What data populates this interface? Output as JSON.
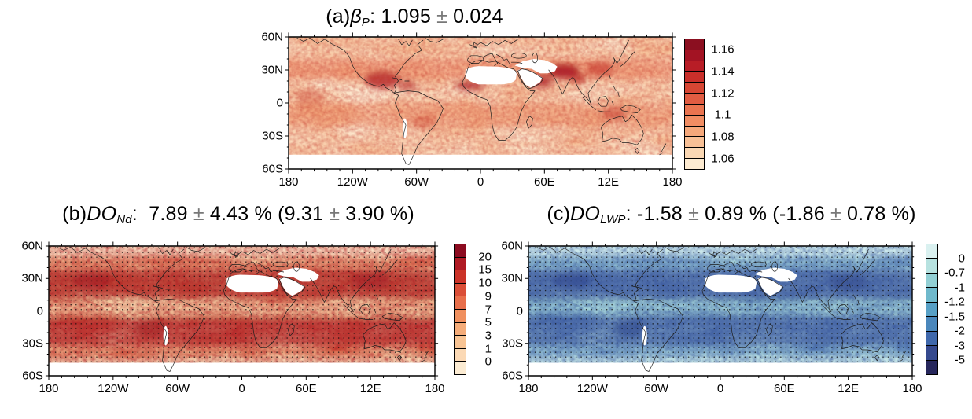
{
  "figure": {
    "background": "#ffffff",
    "panels": [
      {
        "id": "a",
        "title_segments": [
          {
            "t": "(a)",
            "s": "n"
          },
          {
            "t": "β",
            "s": "i"
          },
          {
            "t": "P",
            "s": "sub"
          },
          {
            "t": ": 1.095 ",
            "s": "n"
          },
          {
            "t": "±",
            "s": "pm"
          },
          {
            "t": " 0.024",
            "s": "n"
          }
        ],
        "lat_ticks": [
          "60N",
          "30N",
          "0",
          "30S",
          "60S"
        ],
        "lon_ticks": [
          "180",
          "120W",
          "60W",
          "0",
          "60E",
          "12E",
          "180"
        ],
        "colorbar": {
          "colors": [
            "#8b0f20",
            "#a31323",
            "#b81d26",
            "#c92f2a",
            "#d74633",
            "#e15c42",
            "#ea7450",
            "#f18d63",
            "#f5a87b",
            "#f8c096",
            "#fad7b3",
            "#fdebd1"
          ],
          "labels": [
            {
              "at": 1,
              "text": "1.16"
            },
            {
              "at": 3,
              "text": "1.14"
            },
            {
              "at": 5,
              "text": "1.12"
            },
            {
              "at": 7,
              "text": "1.1"
            },
            {
              "at": 9,
              "text": "1.08"
            },
            {
              "at": 11,
              "text": "1.06"
            }
          ]
        },
        "stippled": false
      },
      {
        "id": "b",
        "title_segments": [
          {
            "t": "(b)",
            "s": "n"
          },
          {
            "t": "DO",
            "s": "i"
          },
          {
            "t": "Nd",
            "s": "sub"
          },
          {
            "t": ":  7.89 ",
            "s": "n"
          },
          {
            "t": "±",
            "s": "pm"
          },
          {
            "t": " 4.43 % (9.31 ",
            "s": "n"
          },
          {
            "t": "±",
            "s": "pm"
          },
          {
            "t": " 3.90 %)",
            "s": "n"
          }
        ],
        "lat_ticks": [
          "60N",
          "30N",
          "0",
          "30S",
          "60S"
        ],
        "lon_ticks": [
          "180",
          "120W",
          "60W",
          "0",
          "60E",
          "12E",
          "180"
        ],
        "colorbar": {
          "colors": [
            "#8c0b20",
            "#b01a24",
            "#cb3328",
            "#da4e37",
            "#e86f4b",
            "#f0905f",
            "#f5ac79",
            "#f8c494",
            "#fbd9b5",
            "#fcecd3"
          ],
          "labels": [
            {
              "at": 1,
              "text": "20"
            },
            {
              "at": 2,
              "text": "15"
            },
            {
              "at": 3,
              "text": "10"
            },
            {
              "at": 4,
              "text": "9"
            },
            {
              "at": 5,
              "text": "7"
            },
            {
              "at": 6,
              "text": "5"
            },
            {
              "at": 7,
              "text": "3"
            },
            {
              "at": 8,
              "text": "1"
            },
            {
              "at": 9,
              "text": "0"
            }
          ]
        },
        "stippled": true
      },
      {
        "id": "c",
        "title_segments": [
          {
            "t": "(c)",
            "s": "n"
          },
          {
            "t": "DO",
            "s": "i"
          },
          {
            "t": "LWP",
            "s": "sub"
          },
          {
            "t": ": -1.58 ",
            "s": "n"
          },
          {
            "t": "±",
            "s": "pm"
          },
          {
            "t": " 0.89 % (-1.86 ",
            "s": "n"
          },
          {
            "t": "±",
            "s": "pm"
          },
          {
            "t": " 0.78 %)",
            "s": "n"
          }
        ],
        "lat_ticks": [
          "60N",
          "30N",
          "0",
          "30S",
          "60S"
        ],
        "lon_ticks": [
          "180",
          "120W",
          "60W",
          "0",
          "60E",
          "12E",
          "180"
        ],
        "colorbar": {
          "colors": [
            "#daf1f0",
            "#b7e2e0",
            "#92cfd4",
            "#6fb9cc",
            "#57a0c6",
            "#4a87bc",
            "#3f68ac",
            "#35498e",
            "#27275c"
          ],
          "labels": [
            {
              "at": 1,
              "text": "0"
            },
            {
              "at": 2,
              "text": "-0.7"
            },
            {
              "at": 3,
              "text": "-1"
            },
            {
              "at": 4,
              "text": "-1.2"
            },
            {
              "at": 5,
              "text": "-1.5"
            },
            {
              "at": 6,
              "text": "-2"
            },
            {
              "at": 7,
              "text": "-3"
            },
            {
              "at": 8,
              "text": "-5"
            }
          ]
        },
        "stippled": true
      }
    ]
  },
  "chart_data": [
    {
      "type": "heatmap",
      "subtype": "global-map",
      "projection": "equirectangular",
      "panel": "(a)",
      "title": "(a) βP: 1.095 ± 0.024",
      "variable": "β_P",
      "global_mean": 1.095,
      "uncertainty": 0.024,
      "lat_axis": {
        "tick_labels": [
          "60N",
          "30N",
          "0",
          "30S",
          "60S"
        ],
        "range_deg": [
          -60,
          60
        ]
      },
      "lon_axis": {
        "tick_labels": [
          "180",
          "120W",
          "60W",
          "0",
          "60E",
          "12E",
          "180"
        ]
      },
      "colorbar": {
        "orientation": "vertical",
        "n_segments": 12,
        "tick_values": [
          1.16,
          1.14,
          1.12,
          1.1,
          1.08,
          1.06
        ],
        "palette": "light cream to dark red, sequential"
      },
      "stippling": false,
      "masked_white_regions": [
        "Sahara / Arabian peninsula / Middle East deserts",
        "high southern latitudes below about 52S"
      ],
      "pattern_summary": "Light values ~1.05-1.08 over most oceans and high latitudes; dark maxima >1.14 over Central America/Mexico, Sahel, Middle East, northern India, East and Southeast Asia"
    },
    {
      "type": "heatmap",
      "subtype": "global-map",
      "projection": "equirectangular",
      "panel": "(b)",
      "title": "(b) DO_Nd: 7.89 ± 4.43 % (9.31 ± 3.90 %)",
      "variable": "DO_Nd (%)",
      "global_mean_percent": 7.89,
      "uncertainty_percent": 4.43,
      "secondary_mean_percent": 9.31,
      "secondary_uncertainty_percent": 3.9,
      "lat_axis": {
        "tick_labels": [
          "60N",
          "30N",
          "0",
          "30S",
          "60S"
        ],
        "range_deg": [
          -60,
          60
        ]
      },
      "lon_axis": {
        "tick_labels": [
          "180",
          "120W",
          "60W",
          "0",
          "60E",
          "12E",
          "180"
        ]
      },
      "colorbar": {
        "orientation": "vertical",
        "n_segments": 10,
        "tick_values": [
          20,
          15,
          10,
          9,
          7,
          5,
          3,
          1,
          0
        ],
        "palette": "cream to dark red, sequential"
      },
      "stippling": true,
      "masked_white_regions": [
        "Sahara / Arabian peninsula deserts",
        "high southern latitudes below about 52S"
      ],
      "pattern_summary": "Dark red subtropical bands (~10-35N and ~5-30S) with speckled texture; lighter cream near the equator and at high latitudes; black stipple dots over most of the globe"
    },
    {
      "type": "heatmap",
      "subtype": "global-map",
      "projection": "equirectangular",
      "panel": "(c)",
      "title": "(c) DO_LWP: -1.58 ± 0.89 % (-1.86 ± 0.78 %)",
      "variable": "DO_LWP (%)",
      "global_mean_percent": -1.58,
      "uncertainty_percent": 0.89,
      "secondary_mean_percent": -1.86,
      "secondary_uncertainty_percent": 0.78,
      "lat_axis": {
        "tick_labels": [
          "60N",
          "30N",
          "0",
          "30S",
          "60S"
        ],
        "range_deg": [
          -60,
          60
        ]
      },
      "lon_axis": {
        "tick_labels": [
          "180",
          "120W",
          "60W",
          "0",
          "60E",
          "12E",
          "180"
        ]
      },
      "colorbar": {
        "orientation": "vertical",
        "n_segments": 9,
        "tick_values": [
          0,
          -0.7,
          -1,
          -1.2,
          -1.5,
          -2,
          -3,
          -5
        ],
        "palette": "light cyan to dark navy blue, sequential"
      },
      "stippling": true,
      "masked_white_regions": [
        "Sahara / Arabian peninsula deserts",
        "high southern latitudes below about 52S"
      ],
      "pattern_summary": "Dark blue subtropical bands (~10-35N and ~5-30S); light cyan near 60N/60S and patchy light areas near the equator; black stipple dots over most of the globe"
    }
  ]
}
